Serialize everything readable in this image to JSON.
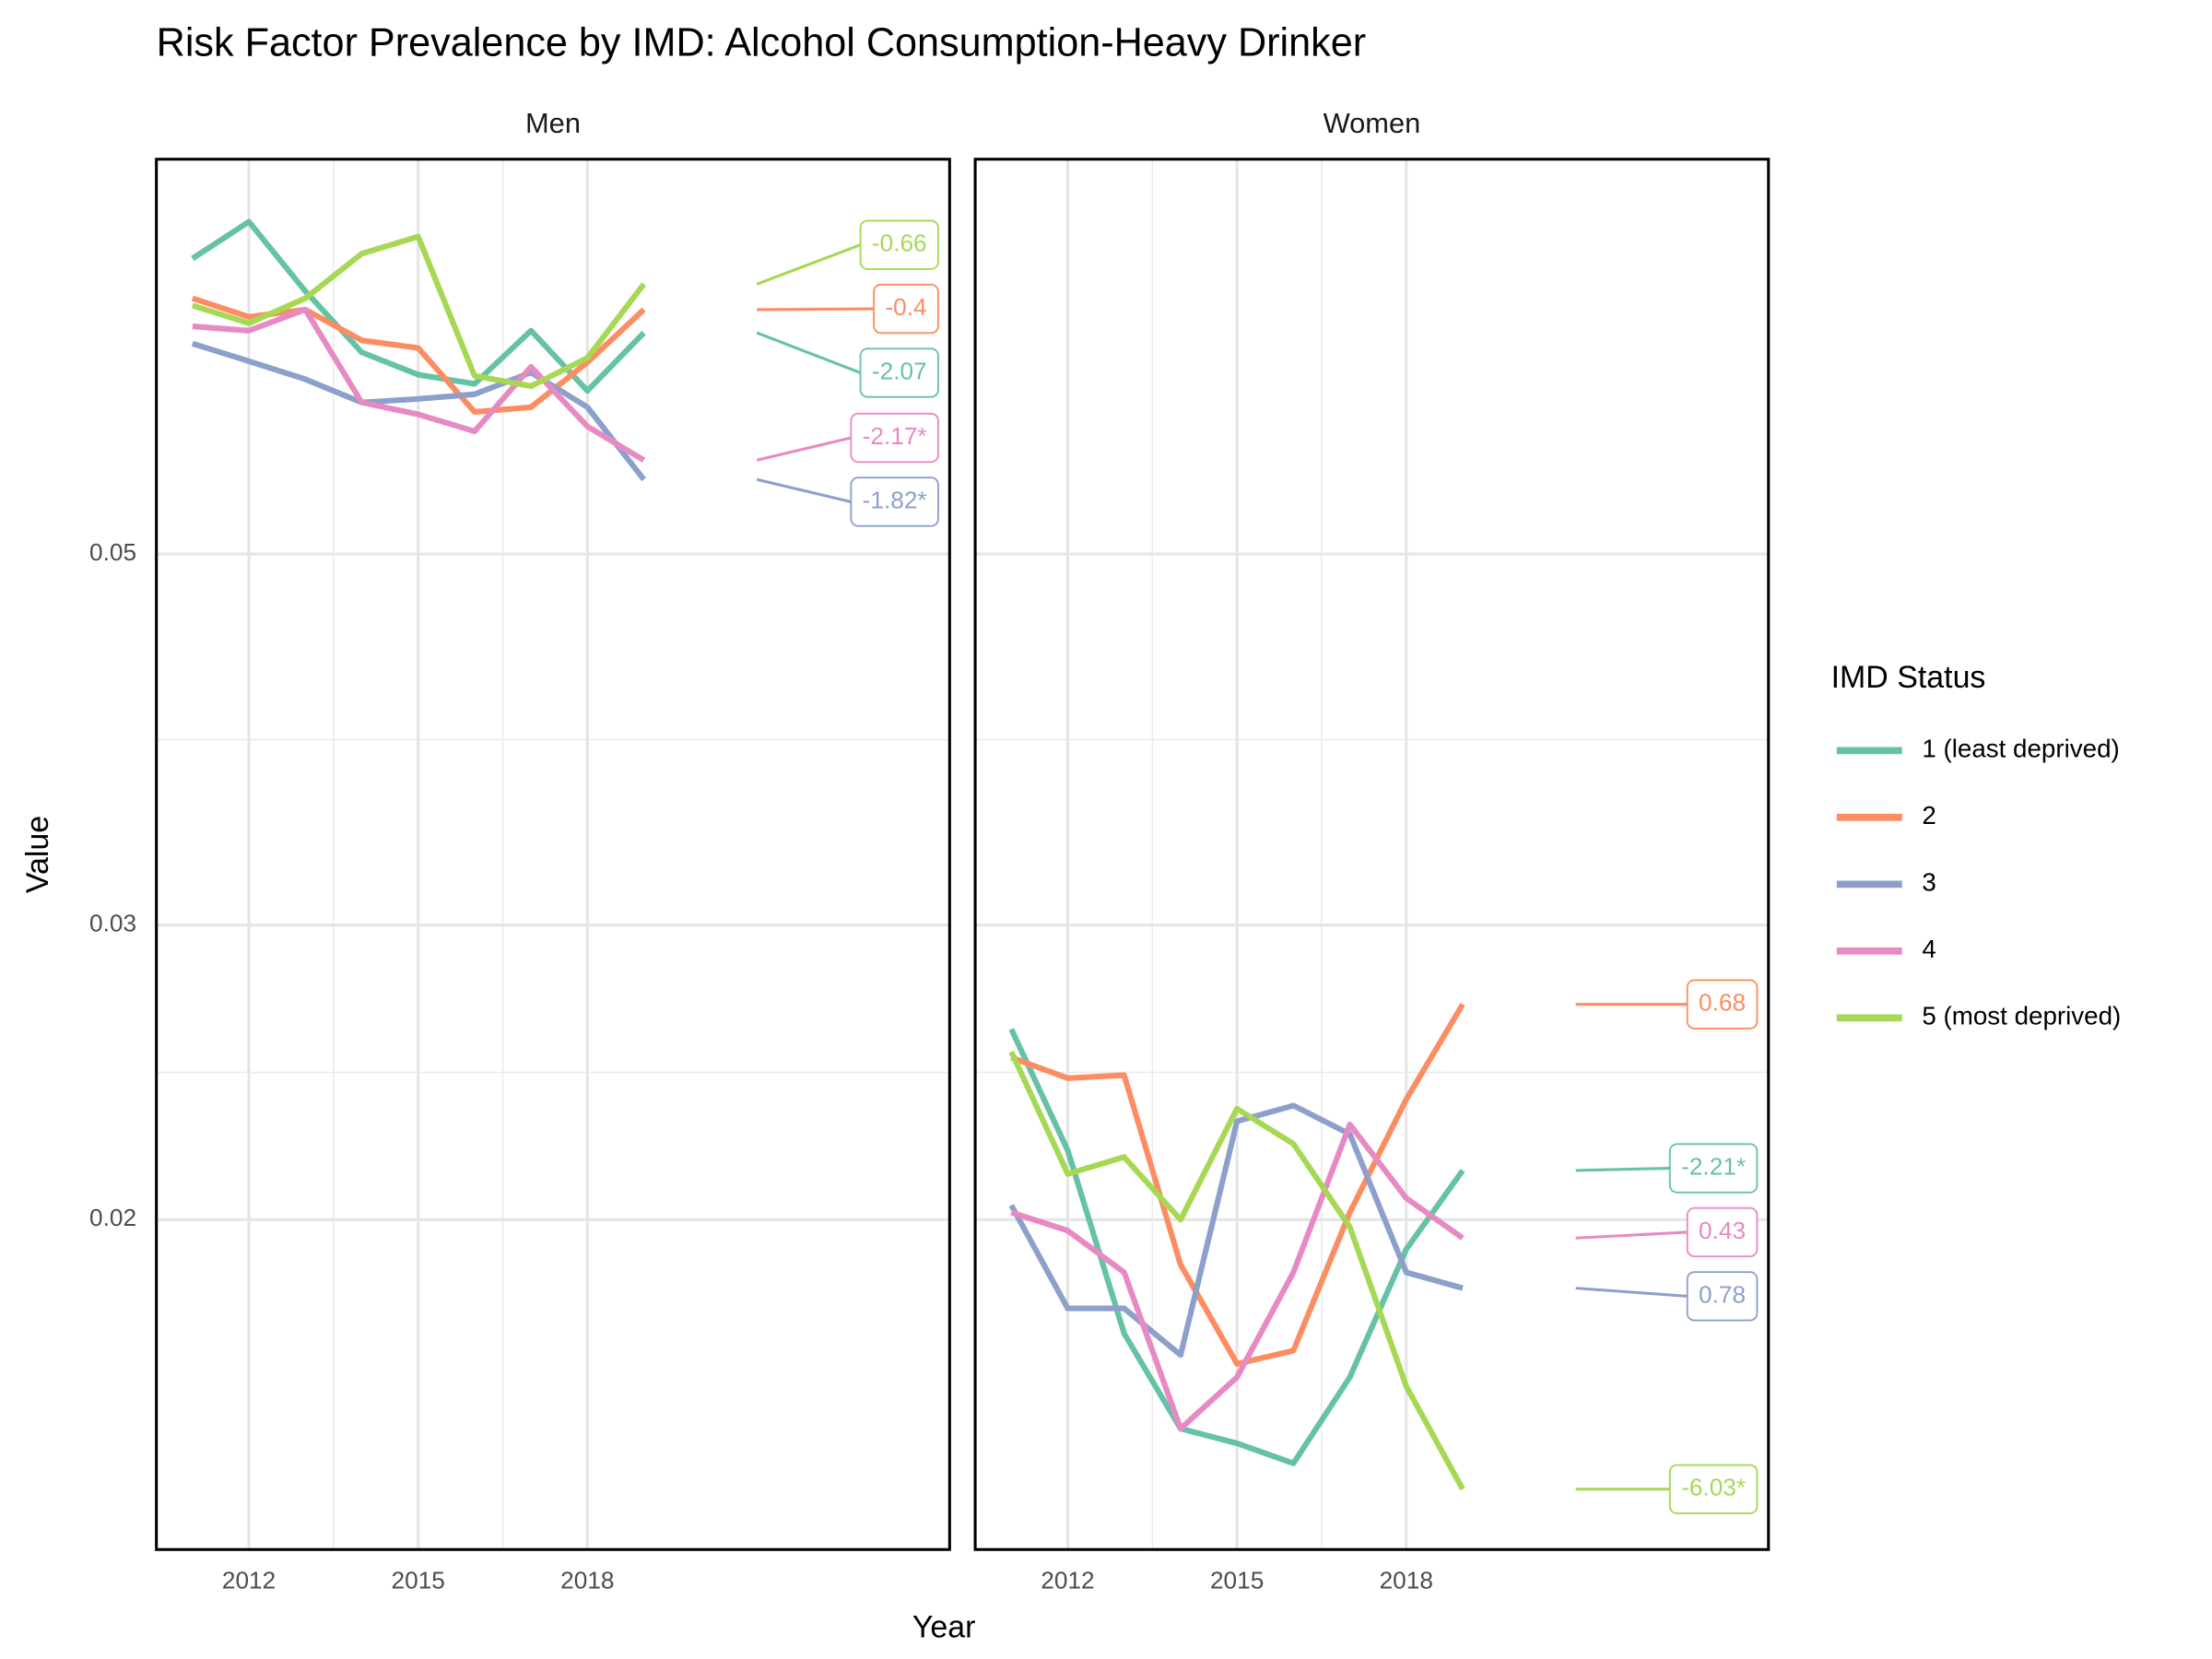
{
  "chart_data": {
    "type": "line",
    "title": "Risk Factor Prevalence by IMD: Alcohol Consumption-Heavy Drinker",
    "x_label": "Year",
    "y_label": "Value",
    "x": [
      2011,
      2012,
      2013,
      2014,
      2015,
      2016,
      2017,
      2018,
      2019
    ],
    "xlim": [
      2010.36,
      2024.42
    ],
    "xticks": [
      2012,
      2015,
      2018
    ],
    "ylim": [
      0.0127,
      0.0861
    ],
    "yticks": [
      0.02,
      0.03,
      0.05
    ],
    "log_y": true,
    "grid": true,
    "legend_position": "right",
    "legend_title": "IMD Status",
    "series": [
      {
        "name": "1 (least deprived)",
        "color": "#66c2a5"
      },
      {
        "name": "2",
        "color": "#fc8d62"
      },
      {
        "name": "3",
        "color": "#8da0cb"
      },
      {
        "name": "4",
        "color": "#e78ac3"
      },
      {
        "name": "5 (most deprived)",
        "color": "#a6d854"
      }
    ],
    "panels": [
      {
        "title": "Men",
        "series": [
          {
            "values": [
              0.0751,
              0.079,
              0.0718,
              0.066,
              0.064,
              0.0632,
              0.068,
              0.0626,
              0.0678
            ],
            "end_label": "-2.07"
          },
          {
            "values": [
              0.0711,
              0.0693,
              0.07,
              0.0671,
              0.0664,
              0.0608,
              0.0612,
              0.0651,
              0.07
            ],
            "end_label": "-0.4"
          },
          {
            "values": [
              0.0668,
              0.0652,
              0.0636,
              0.0616,
              0.0619,
              0.0623,
              0.0642,
              0.0612,
              0.0554
            ],
            "end_label": "-1.82*"
          },
          {
            "values": [
              0.0684,
              0.068,
              0.07,
              0.0616,
              0.0606,
              0.0592,
              0.0647,
              0.0596,
              0.0569
            ],
            "end_label": "-2.17*"
          },
          {
            "values": [
              0.0704,
              0.0687,
              0.0711,
              0.0756,
              0.0774,
              0.0639,
              0.063,
              0.0655,
              0.0725
            ],
            "end_label": "-0.66"
          }
        ]
      },
      {
        "title": "Women",
        "series": [
          {
            "values": [
              0.026,
              0.022,
              0.0171,
              0.015,
              0.0147,
              0.0143,
              0.0161,
              0.0192,
              0.0214
            ],
            "end_label": "-2.21*"
          },
          {
            "values": [
              0.025,
              0.0243,
              0.0244,
              0.0188,
              0.0164,
              0.0167,
              0.0202,
              0.0236,
              0.0269
            ],
            "end_label": "0.68"
          },
          {
            "values": [
              0.0204,
              0.0177,
              0.0177,
              0.0166,
              0.0229,
              0.0234,
              0.0225,
              0.0186,
              0.0182
            ],
            "end_label": "0.78"
          },
          {
            "values": [
              0.0202,
              0.0197,
              0.0186,
              0.015,
              0.0161,
              0.0186,
              0.0228,
              0.0206,
              0.0195
            ],
            "end_label": "0.43"
          },
          {
            "values": [
              0.0252,
              0.0213,
              0.0218,
              0.02,
              0.0233,
              0.0222,
              0.0198,
              0.0159,
              0.0138
            ],
            "end_label": "-6.03*"
          }
        ]
      }
    ]
  }
}
